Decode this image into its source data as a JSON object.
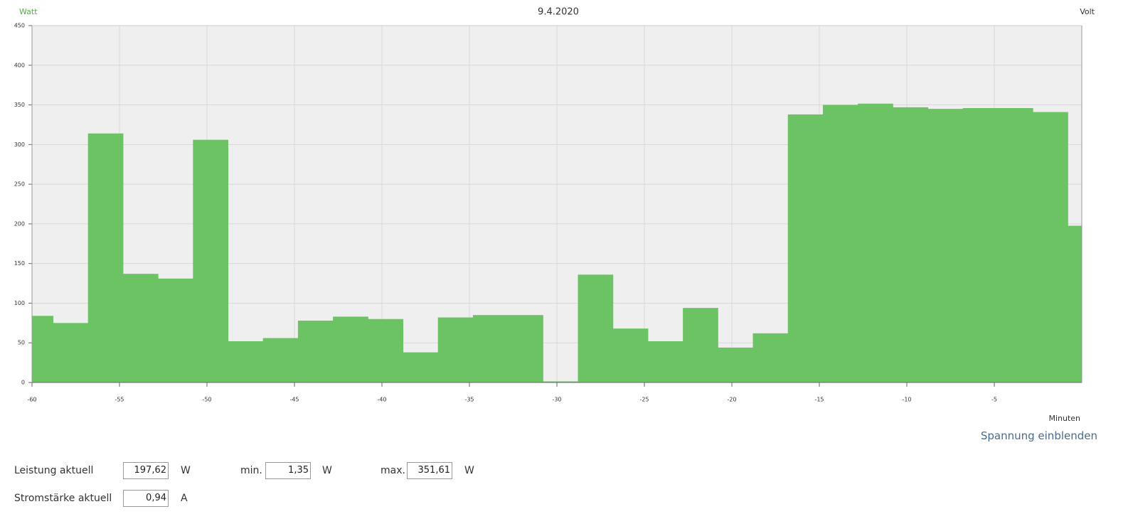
{
  "chart_data": {
    "type": "histogram",
    "title": "9.4.2020",
    "y_label": "Watt",
    "y2_label": "Volt",
    "x_label": "Minuten",
    "bins": [
      -60,
      -58.8,
      -56.8,
      -54.8,
      -52.8,
      -50.8,
      -48.8,
      -46.8,
      -44.8,
      -42.8,
      -40.8,
      -38.8,
      -36.8,
      -34.8,
      -32.8,
      -30.8,
      -28.8,
      -26.8,
      -24.8,
      -22.8,
      -20.8,
      -18.8,
      -16.8,
      -14.8,
      -12.8,
      -10.8,
      -8.8,
      -6.8,
      -4.8,
      -2.8,
      -0.8,
      0
    ],
    "counts": [
      84,
      75,
      314,
      137,
      131,
      306,
      52,
      56,
      78,
      83,
      80,
      38,
      82,
      85,
      85,
      1.35,
      136,
      68,
      52,
      94,
      44,
      62,
      338,
      350,
      351.61,
      347,
      345,
      346,
      346,
      341,
      197.62
    ],
    "color": "#6cc364",
    "xlim": [
      -60,
      0
    ],
    "xticks": [
      -60,
      -55,
      -50,
      -45,
      -40,
      -35,
      -30,
      -25,
      -20,
      -15,
      -10,
      -5
    ],
    "ylim": [
      0,
      450
    ],
    "yticks": [
      0,
      50,
      100,
      150,
      200,
      250,
      300,
      350,
      400,
      450
    ],
    "grid": true
  },
  "toggle_link": "Spannung einblenden",
  "stats": [
    {
      "label": "Leistung aktuell",
      "value": "197,62",
      "unit": "W"
    },
    {
      "label": "min.",
      "value": "1,35",
      "unit": "W"
    },
    {
      "label": "max.",
      "value": "351,61",
      "unit": "W"
    },
    {
      "label": "Stromstärke aktuell",
      "value": "0,94",
      "unit": "A"
    }
  ]
}
